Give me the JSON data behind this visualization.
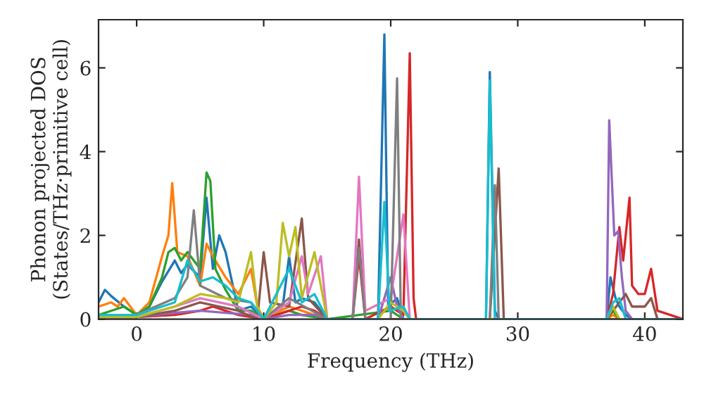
{
  "chart_data": {
    "type": "line",
    "xlabel": "Frequency (THz)",
    "ylabel": "Phonon projected DOS\n(States/THz·primitive cell)",
    "xlim": [
      -3,
      43
    ],
    "ylim": [
      0,
      7.15
    ],
    "xticks": [
      0,
      10,
      20,
      30,
      40
    ],
    "yticks": [
      0,
      2,
      4,
      6
    ],
    "series": [
      {
        "color": "#1f77b4",
        "x": [
          -3,
          -2.5,
          -2,
          -1,
          0,
          1,
          2,
          3,
          3.5,
          4,
          5,
          5.5,
          6,
          6.5,
          7,
          7.5,
          8,
          9,
          10,
          11,
          11.5,
          12,
          12.5,
          13,
          14,
          15,
          19,
          19.5,
          19.8,
          20.5,
          21,
          27.5,
          27.8,
          28.2,
          28.5,
          37,
          37.3,
          37.7,
          38,
          38.5,
          39,
          43
        ],
        "values": [
          0.4,
          0.7,
          0.55,
          0.3,
          0.1,
          0.3,
          0.9,
          1.4,
          1.1,
          1.3,
          1.0,
          2.9,
          1.2,
          2.0,
          1.6,
          0.9,
          0.2,
          0.3,
          0,
          0.2,
          0.3,
          1.5,
          0.4,
          0.5,
          0.4,
          0,
          0,
          6.8,
          0.3,
          0.5,
          0,
          0,
          5.9,
          0.2,
          0,
          0,
          1.0,
          0.5,
          0.3,
          0.1,
          0,
          0
        ]
      },
      {
        "color": "#ff7f0e",
        "x": [
          -3,
          -2,
          -1.5,
          -1,
          0,
          1,
          2,
          2.5,
          2.8,
          3.2,
          4,
          5,
          5.5,
          6,
          7,
          8,
          9,
          9.5,
          10,
          12,
          13,
          14,
          15,
          37,
          37.5,
          38,
          43
        ],
        "values": [
          0.3,
          0.4,
          0.3,
          0.5,
          0.1,
          0.4,
          1.5,
          2.0,
          3.25,
          1.6,
          1.5,
          0.8,
          1.8,
          1.5,
          1.0,
          0.6,
          1.2,
          0.3,
          0,
          0.3,
          0.2,
          0.1,
          0,
          0,
          0.1,
          0,
          0
        ]
      },
      {
        "color": "#2ca02c",
        "x": [
          -3,
          -1,
          0,
          1,
          2,
          2.5,
          3,
          3.5,
          4,
          5,
          5.5,
          5.8,
          6.2,
          7,
          8,
          9,
          10,
          12,
          13,
          15,
          20,
          21,
          37,
          37.5,
          38,
          43
        ],
        "values": [
          0.1,
          0.3,
          0.1,
          0.3,
          1.0,
          1.6,
          1.7,
          1.4,
          1.6,
          1.2,
          3.5,
          3.3,
          1.2,
          0.7,
          0.2,
          0.2,
          0,
          0.2,
          0.1,
          0,
          0.2,
          0,
          0,
          0.2,
          0,
          0
        ]
      },
      {
        "color": "#d62728",
        "x": [
          -3,
          0,
          3,
          5,
          6,
          8,
          10,
          12,
          13,
          14,
          15,
          17,
          17.5,
          18,
          20,
          21,
          21.5,
          21.8,
          22,
          37,
          37.5,
          38,
          38.3,
          38.8,
          39,
          39.5,
          40,
          40.5,
          41,
          43
        ],
        "values": [
          0.05,
          0.05,
          0.1,
          0.2,
          0.3,
          0.1,
          0,
          0.2,
          0.3,
          0.2,
          0,
          0,
          1.5,
          0,
          0.3,
          0.1,
          6.35,
          0.5,
          0,
          0,
          0.6,
          2.2,
          1.4,
          2.9,
          0.8,
          0.6,
          0.6,
          1.2,
          0.2,
          0
        ]
      },
      {
        "color": "#9467bd",
        "x": [
          -3,
          0,
          3,
          5,
          7,
          9,
          10,
          12,
          14,
          15,
          19,
          20,
          20.5,
          21,
          37,
          37.2,
          37.6,
          37.9,
          38.2,
          38.5,
          39,
          43
        ],
        "values": [
          0.05,
          0.05,
          0.15,
          0.2,
          0.15,
          0.1,
          0,
          0.1,
          0.1,
          0,
          0,
          1.0,
          0.3,
          0,
          0,
          4.75,
          2.0,
          2.1,
          1.0,
          0.2,
          0,
          0
        ]
      },
      {
        "color": "#8c564b",
        "x": [
          -3,
          0,
          3,
          5,
          8,
          9.5,
          10,
          10.5,
          12,
          13,
          13.5,
          15,
          17,
          17.5,
          18,
          27.8,
          28.5,
          28.9,
          37,
          38.5,
          39,
          40,
          40.5,
          41,
          43
        ],
        "values": [
          0.05,
          0.05,
          0.2,
          0.4,
          0.2,
          0,
          1.6,
          0.4,
          0.3,
          2.4,
          0.5,
          0,
          0,
          1.9,
          0,
          0,
          3.6,
          0,
          0,
          0.6,
          0.3,
          0.3,
          0.5,
          0,
          0
        ]
      },
      {
        "color": "#e377c2",
        "x": [
          -3,
          0,
          3,
          5,
          8,
          10,
          12,
          13,
          13.5,
          14.5,
          15,
          17,
          17.5,
          18,
          20,
          21,
          21.5,
          43
        ],
        "values": [
          0.05,
          0.05,
          0.3,
          0.5,
          0.3,
          0,
          0.4,
          1.5,
          0.6,
          1.5,
          0,
          0,
          3.4,
          0.2,
          0.5,
          2.5,
          0,
          0
        ]
      },
      {
        "color": "#7f7f7f",
        "x": [
          -3,
          0,
          3,
          4,
          4.5,
          5,
          7,
          9,
          10,
          12,
          15,
          17,
          17.5,
          18,
          20,
          20.5,
          20.8,
          27.8,
          28.2,
          28.5,
          43
        ],
        "values": [
          0.1,
          0.1,
          0.5,
          1.0,
          2.6,
          0.8,
          0.5,
          0.4,
          0,
          0.5,
          0,
          0,
          1.7,
          0,
          0,
          5.75,
          0,
          0,
          3.2,
          0,
          0
        ]
      },
      {
        "color": "#bcbd22",
        "x": [
          -3,
          0,
          3,
          5,
          7,
          8,
          9,
          9.5,
          10,
          11,
          11.5,
          12,
          12.5,
          13,
          14,
          15,
          19,
          20,
          21,
          21.5,
          37,
          37.5,
          38,
          43
        ],
        "values": [
          0.05,
          0.05,
          0.3,
          0.6,
          0.5,
          0.4,
          1.6,
          0.3,
          0,
          0.4,
          2.3,
          1.5,
          2.2,
          0.5,
          1.6,
          0,
          0,
          0.4,
          0.2,
          0,
          0,
          0.3,
          0,
          0
        ]
      },
      {
        "color": "#17becf",
        "x": [
          -3,
          0,
          3,
          4,
          5,
          6,
          7,
          8,
          9,
          10,
          12,
          13,
          14,
          15,
          19,
          19.5,
          19.9,
          21,
          21.5,
          27.5,
          27.8,
          28.2,
          37,
          37.5,
          38,
          38.5,
          43
        ],
        "values": [
          0.1,
          0.1,
          0.4,
          1.4,
          0.9,
          1.0,
          0.8,
          0.5,
          0.4,
          0,
          1.2,
          0.4,
          0.6,
          0,
          0,
          2.8,
          0.2,
          0.3,
          0,
          0,
          5.7,
          0,
          0,
          0.4,
          0.5,
          0,
          0
        ]
      }
    ]
  }
}
